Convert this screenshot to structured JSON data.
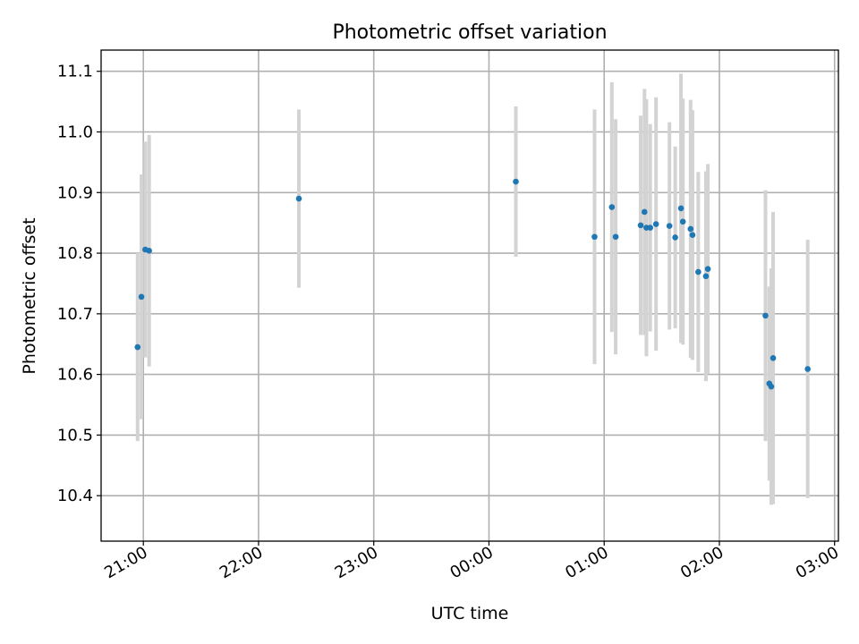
{
  "chart_data": {
    "type": "scatter",
    "title": "Photometric offset variation",
    "xlabel": "UTC time",
    "ylabel": "Photometric offset",
    "x_ticks": [
      "21:00",
      "22:00",
      "23:00",
      "00:00",
      "01:00",
      "02:00",
      "03:00"
    ],
    "y_ticks": [
      "10.4",
      "10.5",
      "10.6",
      "10.7",
      "10.8",
      "10.9",
      "11.0",
      "11.1"
    ],
    "xlim": [
      "20:38",
      "03:02"
    ],
    "ylim": [
      10.325,
      11.135
    ],
    "grid": true,
    "colors": {
      "point": "#1f77b4",
      "errorbar": "#d3d3d3"
    },
    "series": [
      {
        "points": [
          {
            "x": "20:57",
            "y": 10.645,
            "err": 0.155
          },
          {
            "x": "20:59",
            "y": 10.728,
            "err": 0.202
          },
          {
            "x": "21:01",
            "y": 10.806,
            "err": 0.178
          },
          {
            "x": "21:03",
            "y": 10.804,
            "err": 0.191
          },
          {
            "x": "22:21",
            "y": 10.89,
            "err": 0.147
          },
          {
            "x": "00:14",
            "y": 10.918,
            "err": 0.124
          },
          {
            "x": "00:55",
            "y": 10.827,
            "err": 0.21
          },
          {
            "x": "01:04",
            "y": 10.876,
            "err": 0.206
          },
          {
            "x": "01:06",
            "y": 10.827,
            "err": 0.194
          },
          {
            "x": "01:19",
            "y": 10.846,
            "err": 0.181
          },
          {
            "x": "01:21",
            "y": 10.868,
            "err": 0.203
          },
          {
            "x": "01:22",
            "y": 10.842,
            "err": 0.212
          },
          {
            "x": "01:24",
            "y": 10.842,
            "err": 0.171
          },
          {
            "x": "01:27",
            "y": 10.848,
            "err": 0.209
          },
          {
            "x": "01:34",
            "y": 10.845,
            "err": 0.171
          },
          {
            "x": "01:37",
            "y": 10.826,
            "err": 0.15
          },
          {
            "x": "01:40",
            "y": 10.874,
            "err": 0.222
          },
          {
            "x": "01:41",
            "y": 10.852,
            "err": 0.203
          },
          {
            "x": "01:45",
            "y": 10.84,
            "err": 0.213
          },
          {
            "x": "01:46",
            "y": 10.83,
            "err": 0.206
          },
          {
            "x": "01:49",
            "y": 10.769,
            "err": 0.165
          },
          {
            "x": "01:53",
            "y": 10.762,
            "err": 0.173
          },
          {
            "x": "01:54",
            "y": 10.774,
            "err": 0.173
          },
          {
            "x": "02:24",
            "y": 10.697,
            "err": 0.207
          },
          {
            "x": "02:26",
            "y": 10.585,
            "err": 0.16
          },
          {
            "x": "02:27",
            "y": 10.58,
            "err": 0.195
          },
          {
            "x": "02:28",
            "y": 10.627,
            "err": 0.241
          },
          {
            "x": "02:46",
            "y": 10.609,
            "err": 0.213
          }
        ]
      }
    ]
  }
}
